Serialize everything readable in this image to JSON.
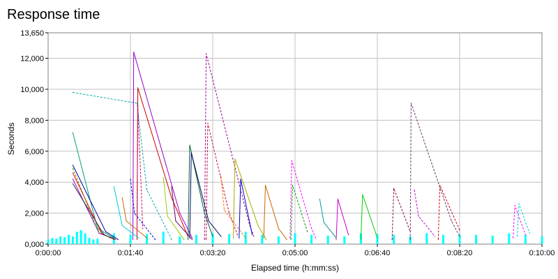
{
  "chart_data": {
    "type": "line",
    "title": "Response time",
    "xlabel": "Elapsed time (h:mm:ss)",
    "ylabel": "Seconds",
    "x_unit": "seconds",
    "xlim": [
      0,
      600
    ],
    "ylim": [
      0,
      13650
    ],
    "x_ticks": [
      0,
      100,
      200,
      300,
      400,
      500,
      600
    ],
    "x_tick_labels": [
      "0:00:00",
      "0:01:40",
      "0:03:20",
      "0:05:00",
      "0:06:40",
      "0:08:20",
      "0:10:00"
    ],
    "y_ticks": [
      0,
      2000,
      4000,
      6000,
      8000,
      10000,
      12000,
      13650
    ],
    "y_tick_labels": [
      "0,000",
      "2,000",
      "4,000",
      "6,000",
      "8,000",
      "10,000",
      "12,000",
      "13,650"
    ],
    "grid": true,
    "legend": "none",
    "series": [
      {
        "color": "#00ffff",
        "style": "bars",
        "x": [
          0,
          5,
          10,
          15,
          20,
          25,
          30,
          35,
          40,
          45,
          50,
          55,
          60,
          80,
          100,
          120,
          140,
          160,
          180,
          200,
          220,
          240,
          260,
          280,
          300,
          320,
          340,
          360,
          380,
          400,
          420,
          440,
          460,
          480,
          500,
          520,
          540,
          560,
          580,
          600
        ],
        "values": [
          300,
          400,
          350,
          500,
          450,
          600,
          500,
          800,
          900,
          700,
          400,
          300,
          350,
          700,
          600,
          650,
          800,
          500,
          600,
          700,
          650,
          800,
          600,
          500,
          700,
          600,
          550,
          500,
          700,
          650,
          600,
          500,
          700,
          600,
          650,
          600,
          550,
          700,
          600,
          500
        ]
      },
      {
        "color": "#00aaaa",
        "style": "dashed",
        "x": [
          30,
          108,
          120,
          150
        ],
        "values": [
          9800,
          9100,
          3500,
          300
        ]
      },
      {
        "color": "#00a080",
        "style": "solid",
        "x": [
          30,
          60,
          80
        ],
        "values": [
          7200,
          1000,
          400
        ]
      },
      {
        "color": "#9900cc",
        "style": "solid",
        "x": [
          103,
          104,
          160,
          175
        ],
        "values": [
          300,
          12400,
          2000,
          400
        ]
      },
      {
        "color": "#cc0000",
        "style": "solid",
        "x": [
          108,
          109,
          150,
          170
        ],
        "values": [
          300,
          10100,
          3000,
          500
        ]
      },
      {
        "color": "#cc0066",
        "style": "dashed",
        "x": [
          108,
          109,
          115
        ],
        "values": [
          500,
          9000,
          1000
        ]
      },
      {
        "color": "#990099",
        "style": "dashed",
        "x": [
          190,
          192,
          245,
          250
        ],
        "values": [
          300,
          12300,
          1200,
          500
        ]
      },
      {
        "color": "#cc0033",
        "style": "dashed",
        "x": [
          192,
          194,
          220,
          230
        ],
        "values": [
          300,
          7800,
          2000,
          600
        ]
      },
      {
        "color": "#006633",
        "style": "solid",
        "x": [
          170,
          172,
          190,
          200
        ],
        "values": [
          300,
          6400,
          2000,
          500
        ]
      },
      {
        "color": "#000066",
        "style": "solid",
        "x": [
          172,
          174,
          195,
          210
        ],
        "values": [
          400,
          5900,
          1500,
          500
        ]
      },
      {
        "color": "#aaaa00",
        "style": "solid",
        "x": [
          225,
          227,
          255,
          265
        ],
        "values": [
          400,
          5500,
          1200,
          300
        ]
      },
      {
        "color": "#0000cc",
        "style": "solid",
        "x": [
          232,
          234,
          248
        ],
        "values": [
          400,
          4200,
          600
        ]
      },
      {
        "color": "#cc6600",
        "style": "solid",
        "x": [
          262,
          264,
          280,
          290
        ],
        "values": [
          400,
          3800,
          1000,
          300
        ]
      },
      {
        "color": "#ff00ff",
        "style": "dashed",
        "x": [
          294,
          296,
          320,
          325
        ],
        "values": [
          400,
          5400,
          1000,
          400
        ]
      },
      {
        "color": "#009900",
        "style": "dashed",
        "x": [
          295,
          297,
          315
        ],
        "values": [
          300,
          3800,
          800
        ]
      },
      {
        "color": "#cc00cc",
        "style": "solid",
        "x": [
          350,
          352,
          365
        ],
        "values": [
          300,
          2900,
          600
        ]
      },
      {
        "color": "#00cc00",
        "style": "solid",
        "x": [
          380,
          382,
          400
        ],
        "values": [
          300,
          3200,
          400
        ]
      },
      {
        "color": "#663366",
        "style": "dashed",
        "x": [
          440,
          441,
          490,
          500
        ],
        "values": [
          300,
          9100,
          1500,
          500
        ]
      },
      {
        "color": "#880044",
        "style": "dashed",
        "x": [
          418,
          420,
          440
        ],
        "values": [
          300,
          3600,
          800
        ]
      },
      {
        "color": "#cc0000",
        "style": "dashed",
        "x": [
          474,
          476,
          500
        ],
        "values": [
          300,
          3800,
          900
        ]
      },
      {
        "color": "#ff00ff",
        "style": "dashed",
        "x": [
          565,
          567,
          580
        ],
        "values": [
          400,
          2500,
          600
        ]
      },
      {
        "color": "#00cccc",
        "style": "dashed",
        "x": [
          570,
          572,
          585
        ],
        "values": [
          500,
          2600,
          700
        ]
      },
      {
        "color": "#000099",
        "style": "solid",
        "x": [
          30,
          70,
          85
        ],
        "values": [
          5100,
          800,
          300
        ]
      },
      {
        "color": "#ff0000",
        "style": "solid",
        "x": [
          30,
          65,
          80
        ],
        "values": [
          4600,
          700,
          300
        ]
      },
      {
        "color": "#9900cc",
        "style": "solid",
        "x": [
          30,
          62,
          78
        ],
        "values": [
          4200,
          700,
          400
        ]
      },
      {
        "color": "#339900",
        "style": "dashed",
        "x": [
          30,
          60,
          75
        ],
        "values": [
          4900,
          900,
          400
        ]
      },
      {
        "color": "#333333",
        "style": "solid",
        "x": [
          30,
          68,
          82
        ],
        "values": [
          3900,
          600,
          300
        ]
      },
      {
        "color": "#00cccc",
        "style": "solid",
        "x": [
          80,
          90,
          110
        ],
        "values": [
          3700,
          1200,
          400
        ]
      },
      {
        "color": "#cc6600",
        "style": "solid",
        "x": [
          90,
          95,
          120
        ],
        "values": [
          3000,
          1500,
          400
        ]
      },
      {
        "color": "#0000cc",
        "style": "dashed",
        "x": [
          100,
          105,
          130
        ],
        "values": [
          4200,
          2000,
          300
        ]
      },
      {
        "color": "#99cc00",
        "style": "solid",
        "x": [
          140,
          145,
          165
        ],
        "values": [
          4300,
          1800,
          300
        ]
      },
      {
        "color": "#660066",
        "style": "solid",
        "x": [
          150,
          155,
          175
        ],
        "values": [
          3700,
          1500,
          300
        ]
      },
      {
        "color": "#ff6600",
        "style": "dashed",
        "x": [
          210,
          214,
          240
        ],
        "values": [
          4400,
          2200,
          400
        ]
      },
      {
        "color": "#009999",
        "style": "solid",
        "x": [
          330,
          335,
          350
        ],
        "values": [
          2900,
          1400,
          400
        ]
      },
      {
        "color": "#cc00cc",
        "style": "dashed",
        "x": [
          445,
          450,
          470
        ],
        "values": [
          3500,
          1800,
          500
        ]
      }
    ]
  }
}
